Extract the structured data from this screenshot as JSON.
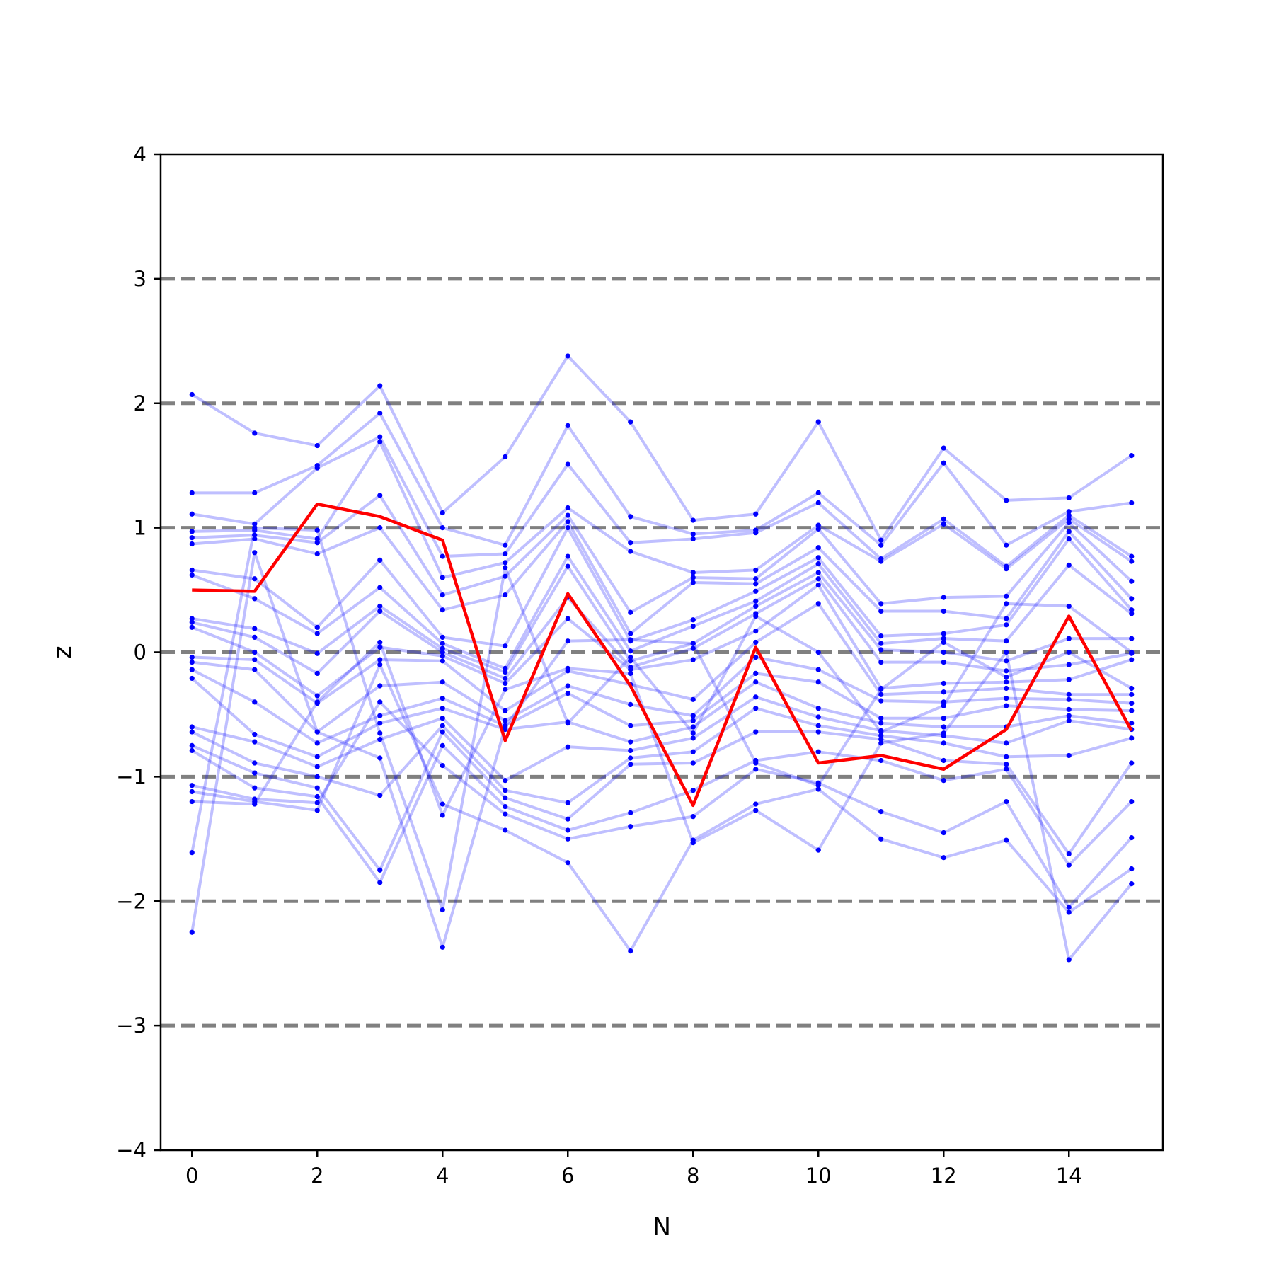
{
  "chart_data": {
    "type": "line",
    "title": "",
    "xlabel": "N",
    "ylabel": "z",
    "xlim": [
      -0.5,
      15.5
    ],
    "ylim": [
      -4,
      4
    ],
    "xticks": [
      0,
      2,
      4,
      6,
      8,
      10,
      12,
      14
    ],
    "yticks": [
      -4,
      -3,
      -2,
      -1,
      0,
      1,
      2,
      3,
      4
    ],
    "xtick_labels": [
      "0",
      "2",
      "4",
      "6",
      "8",
      "10",
      "12",
      "14"
    ],
    "ytick_labels": [
      "−4",
      "−3",
      "−2",
      "−1",
      "0",
      "1",
      "2",
      "3",
      "4"
    ],
    "reference_lines": [
      -3,
      -2,
      -1,
      0,
      1,
      2,
      3
    ],
    "grid": false,
    "colors": {
      "samples": "#0000ff",
      "mean": "#ff0000",
      "reference": "#808080"
    },
    "x": [
      0,
      1,
      2,
      3,
      4,
      5,
      6,
      7,
      8,
      9,
      10,
      11,
      12,
      13,
      14,
      15
    ],
    "mean_series": [
      0.5,
      0.49,
      1.19,
      1.09,
      0.9,
      -0.71,
      0.47,
      -0.27,
      -1.23,
      0.04,
      -0.89,
      -0.83,
      -0.94,
      -0.62,
      0.29,
      -0.63
    ],
    "sample_series": [
      [
        2.07,
        1.76,
        1.66,
        2.14,
        1.12,
        1.57,
        2.38,
        1.85,
        1.06,
        1.11,
        1.85,
        0.9,
        1.64,
        1.22,
        1.24,
        1.58
      ],
      [
        1.28,
        1.28,
        1.5,
        1.92,
        1.0,
        0.86,
        1.82,
        1.09,
        0.95,
        0.98,
        1.28,
        0.86,
        1.52,
        0.86,
        1.13,
        1.2
      ],
      [
        1.11,
        1.03,
        1.48,
        1.73,
        0.77,
        0.79,
        1.51,
        0.88,
        0.91,
        0.96,
        1.2,
        0.75,
        1.07,
        0.69,
        1.1,
        0.77
      ],
      [
        0.97,
        0.98,
        0.91,
        1.69,
        0.6,
        0.72,
        1.16,
        0.81,
        0.64,
        0.66,
        1.02,
        0.73,
        1.03,
        0.67,
        1.07,
        0.73
      ],
      [
        0.92,
        0.94,
        0.88,
        1.26,
        0.46,
        0.61,
        1.1,
        0.32,
        0.6,
        0.59,
        0.99,
        0.39,
        0.44,
        0.45,
        1.04,
        0.57
      ],
      [
        0.87,
        0.91,
        0.79,
        1.0,
        0.34,
        0.46,
        1.05,
        0.15,
        0.56,
        0.55,
        0.84,
        0.33,
        0.33,
        0.27,
        0.97,
        0.43
      ],
      [
        0.66,
        0.59,
        0.2,
        0.74,
        0.12,
        0.05,
        1.0,
        0.09,
        0.26,
        0.49,
        0.76,
        0.13,
        0.15,
        0.22,
        0.91,
        0.34
      ],
      [
        0.62,
        0.43,
        0.15,
        0.52,
        0.07,
        -0.13,
        0.77,
        0.01,
        0.21,
        0.41,
        0.71,
        0.07,
        0.11,
        0.09,
        0.7,
        0.31
      ],
      [
        0.27,
        0.19,
        -0.01,
        0.37,
        0.03,
        -0.16,
        0.69,
        -0.07,
        0.07,
        0.37,
        0.64,
        0.02,
        0.0,
        -0.07,
        0.11,
        0.11
      ],
      [
        0.24,
        0.12,
        -0.17,
        0.33,
        0.0,
        -0.21,
        0.44,
        -0.12,
        0.03,
        0.31,
        0.59,
        -0.08,
        -0.08,
        -0.15,
        -0.1,
        -0.01
      ],
      [
        0.2,
        0.0,
        -0.35,
        0.04,
        -0.03,
        -0.25,
        0.27,
        -0.14,
        -0.06,
        0.17,
        0.54,
        -0.29,
        -0.25,
        -0.24,
        -0.22,
        -0.06
      ],
      [
        -0.04,
        -0.06,
        -0.41,
        -0.06,
        -0.07,
        -0.47,
        -0.15,
        -0.26,
        -0.38,
        0.08,
        0.39,
        -0.34,
        -0.32,
        -0.29,
        -0.34,
        -0.34
      ],
      [
        -0.08,
        -0.14,
        -0.64,
        -0.27,
        -0.24,
        -0.55,
        -0.27,
        -0.42,
        -0.51,
        -0.04,
        -0.14,
        -0.39,
        -0.4,
        -0.37,
        -0.38,
        -0.41
      ],
      [
        -0.14,
        -0.4,
        -0.73,
        -0.51,
        -0.37,
        -0.59,
        -0.33,
        -0.59,
        -0.55,
        -0.17,
        -0.24,
        -0.53,
        -0.53,
        -0.43,
        -0.46,
        -0.47
      ],
      [
        -0.21,
        -0.66,
        -0.84,
        -0.57,
        -0.45,
        -0.62,
        -0.56,
        -0.72,
        -0.6,
        -0.24,
        -0.45,
        -0.57,
        -0.6,
        -0.6,
        -0.51,
        -0.57
      ],
      [
        -0.6,
        -0.72,
        -0.92,
        -0.7,
        -0.53,
        -1.03,
        -0.76,
        -0.79,
        -0.69,
        -0.36,
        -0.52,
        -0.63,
        -0.67,
        -0.73,
        -0.55,
        -0.62
      ],
      [
        -0.64,
        -0.89,
        -1.0,
        -1.15,
        -0.59,
        -1.11,
        -1.21,
        -0.85,
        -0.8,
        -0.45,
        -0.59,
        -0.67,
        -0.73,
        -0.84,
        -0.83,
        -0.69
      ],
      [
        -0.75,
        -0.97,
        -1.09,
        -1.75,
        -0.64,
        -1.17,
        -1.34,
        -0.9,
        -0.89,
        -0.64,
        -0.64,
        -0.7,
        -0.87,
        -0.9,
        -1.62,
        -0.89
      ],
      [
        -0.79,
        -1.09,
        -1.16,
        -1.85,
        -0.75,
        -1.24,
        -1.43,
        -1.29,
        -1.11,
        -0.87,
        -0.8,
        -0.87,
        -1.03,
        -0.94,
        -1.71,
        -1.2
      ],
      [
        -1.07,
        -1.18,
        -1.21,
        -0.4,
        -0.91,
        -1.3,
        -1.5,
        -1.4,
        -1.32,
        -0.94,
        -1.05,
        -1.28,
        -1.45,
        -1.2,
        -2.05,
        -1.49
      ],
      [
        -1.12,
        -1.2,
        -1.27,
        -0.1,
        -1.22,
        -1.43,
        -1.69,
        -2.4,
        -1.51,
        -1.22,
        -1.1,
        -1.5,
        -1.65,
        -1.51,
        -2.09,
        -1.74
      ],
      [
        -1.2,
        -1.22,
        -0.4,
        0.08,
        -1.31,
        -0.3,
        -0.13,
        -0.17,
        -1.53,
        -1.27,
        -1.59,
        -0.73,
        -0.65,
        0.0,
        -2.47,
        -1.86
      ],
      [
        -1.61,
        1.0,
        0.98,
        -0.65,
        -2.07,
        0.68,
        -0.57,
        -0.04,
        -0.65,
        0.29,
        0.0,
        -0.64,
        -0.43,
        0.39,
        0.37,
        0.0
      ],
      [
        -2.25,
        0.8,
        -0.64,
        -0.85,
        -2.37,
        -0.6,
        0.09,
        0.1,
        0.07,
        -0.89,
        -1.07,
        -0.3,
        0.08,
        -0.2,
        0.0,
        -0.29
      ]
    ]
  }
}
